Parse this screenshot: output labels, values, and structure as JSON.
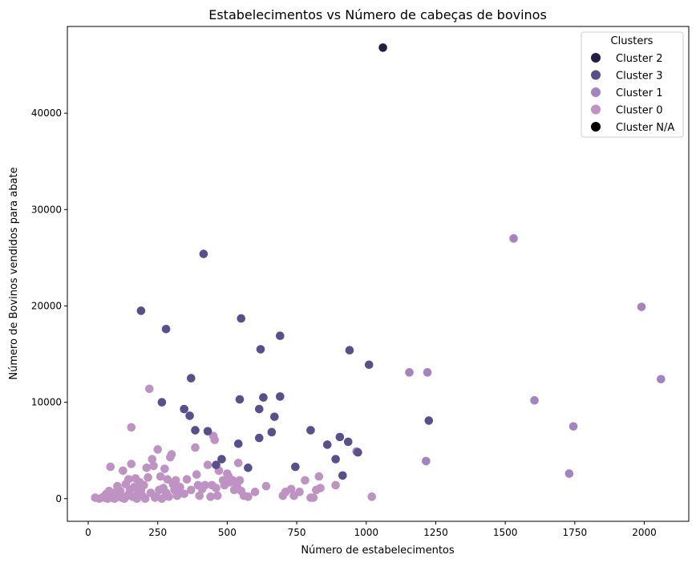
{
  "chart_data": {
    "type": "scatter",
    "title": "Estabelecimentos vs Número de cabeças de bovinos",
    "xlabel": "Número de estabelecimentos",
    "ylabel": "Número de Bovinos vendidos para abate",
    "xlim": [
      -75,
      2160
    ],
    "ylim": [
      -2350,
      49000
    ],
    "xticks": [
      0,
      250,
      500,
      750,
      1000,
      1250,
      1500,
      1750,
      2000
    ],
    "yticks": [
      0,
      10000,
      20000,
      30000,
      40000
    ],
    "grid": false,
    "legend": {
      "title": "Clusters",
      "placement": "top-right",
      "entries": [
        {
          "label": "Cluster 2",
          "color": "#241e44"
        },
        {
          "label": "Cluster 3",
          "color": "#5b4e8c"
        },
        {
          "label": "Cluster 1",
          "color": "#a483c2"
        },
        {
          "label": "Cluster 0",
          "color": "#be92c3"
        },
        {
          "label": "Cluster N/A",
          "color": "#000000"
        }
      ]
    },
    "series": [
      {
        "name": "Cluster 0",
        "color": "#be92c3",
        "points": [
          [
            25,
            100
          ],
          [
            40,
            0
          ],
          [
            55,
            200
          ],
          [
            60,
            100
          ],
          [
            65,
            500
          ],
          [
            70,
            0
          ],
          [
            75,
            800
          ],
          [
            80,
            3300
          ],
          [
            80,
            300
          ],
          [
            85,
            100
          ],
          [
            90,
            600
          ],
          [
            95,
            0
          ],
          [
            100,
            200
          ],
          [
            105,
            1300
          ],
          [
            110,
            500
          ],
          [
            115,
            800
          ],
          [
            120,
            100
          ],
          [
            125,
            2900
          ],
          [
            130,
            0
          ],
          [
            135,
            1500
          ],
          [
            140,
            300
          ],
          [
            145,
            2000
          ],
          [
            150,
            900
          ],
          [
            155,
            3600
          ],
          [
            155,
            7400
          ],
          [
            160,
            200
          ],
          [
            165,
            1200
          ],
          [
            170,
            2100
          ],
          [
            175,
            0
          ],
          [
            180,
            600
          ],
          [
            185,
            1700
          ],
          [
            190,
            900
          ],
          [
            195,
            300
          ],
          [
            200,
            1400
          ],
          [
            205,
            0
          ],
          [
            210,
            3200
          ],
          [
            215,
            2200
          ],
          [
            220,
            11400
          ],
          [
            225,
            600
          ],
          [
            230,
            4100
          ],
          [
            235,
            3400
          ],
          [
            240,
            100
          ],
          [
            245,
            200
          ],
          [
            250,
            5100
          ],
          [
            255,
            900
          ],
          [
            260,
            2300
          ],
          [
            265,
            0
          ],
          [
            270,
            1100
          ],
          [
            275,
            3100
          ],
          [
            280,
            600
          ],
          [
            285,
            2000
          ],
          [
            290,
            200
          ],
          [
            295,
            4300
          ],
          [
            300,
            4600
          ],
          [
            305,
            1500
          ],
          [
            310,
            900
          ],
          [
            315,
            1900
          ],
          [
            320,
            300
          ],
          [
            325,
            700
          ],
          [
            330,
            1200
          ],
          [
            345,
            500
          ],
          [
            355,
            2000
          ],
          [
            370,
            900
          ],
          [
            385,
            5300
          ],
          [
            390,
            2500
          ],
          [
            395,
            1400
          ],
          [
            400,
            300
          ],
          [
            410,
            1000
          ],
          [
            420,
            1400
          ],
          [
            430,
            3500
          ],
          [
            440,
            200
          ],
          [
            445,
            1400
          ],
          [
            450,
            6500
          ],
          [
            455,
            6100
          ],
          [
            460,
            1100
          ],
          [
            465,
            300
          ],
          [
            470,
            2900
          ],
          [
            485,
            1900
          ],
          [
            490,
            1400
          ],
          [
            500,
            2600
          ],
          [
            505,
            2300
          ],
          [
            510,
            1700
          ],
          [
            520,
            1900
          ],
          [
            525,
            900
          ],
          [
            535,
            1300
          ],
          [
            540,
            3700
          ],
          [
            545,
            1900
          ],
          [
            550,
            800
          ],
          [
            560,
            300
          ],
          [
            575,
            200
          ],
          [
            600,
            700
          ],
          [
            640,
            1300
          ],
          [
            700,
            300
          ],
          [
            710,
            700
          ],
          [
            730,
            1000
          ],
          [
            740,
            300
          ],
          [
            760,
            700
          ],
          [
            780,
            1900
          ],
          [
            800,
            100
          ],
          [
            810,
            100
          ],
          [
            820,
            900
          ],
          [
            830,
            2300
          ],
          [
            835,
            1100
          ],
          [
            890,
            1400
          ],
          [
            1020,
            200
          ]
        ]
      },
      {
        "name": "Cluster 1",
        "color": "#a483c2",
        "points": [
          [
            965,
            4900
          ],
          [
            1155,
            13100
          ],
          [
            1215,
            3900
          ],
          [
            1220,
            13100
          ],
          [
            1530,
            27000
          ],
          [
            1605,
            10200
          ],
          [
            1730,
            2600
          ],
          [
            1745,
            7500
          ],
          [
            1990,
            19900
          ],
          [
            2060,
            12400
          ]
        ]
      },
      {
        "name": "Cluster 3",
        "color": "#5b4e8c",
        "points": [
          [
            190,
            19500
          ],
          [
            265,
            10000
          ],
          [
            280,
            17600
          ],
          [
            345,
            9300
          ],
          [
            365,
            8600
          ],
          [
            370,
            12500
          ],
          [
            385,
            7100
          ],
          [
            415,
            25400
          ],
          [
            430,
            7000
          ],
          [
            460,
            3500
          ],
          [
            480,
            4100
          ],
          [
            540,
            5700
          ],
          [
            545,
            10300
          ],
          [
            550,
            18700
          ],
          [
            575,
            3200
          ],
          [
            615,
            9300
          ],
          [
            615,
            6300
          ],
          [
            620,
            15500
          ],
          [
            630,
            10500
          ],
          [
            660,
            6900
          ],
          [
            670,
            8500
          ],
          [
            690,
            10600
          ],
          [
            690,
            16900
          ],
          [
            745,
            3300
          ],
          [
            800,
            7100
          ],
          [
            860,
            5600
          ],
          [
            890,
            4100
          ],
          [
            905,
            6400
          ],
          [
            915,
            2400
          ],
          [
            935,
            5900
          ],
          [
            940,
            15400
          ],
          [
            970,
            4800
          ],
          [
            1010,
            13900
          ],
          [
            1225,
            8100
          ]
        ]
      },
      {
        "name": "Cluster 2",
        "color": "#241e44",
        "points": [
          [
            1060,
            46800
          ]
        ]
      }
    ]
  }
}
